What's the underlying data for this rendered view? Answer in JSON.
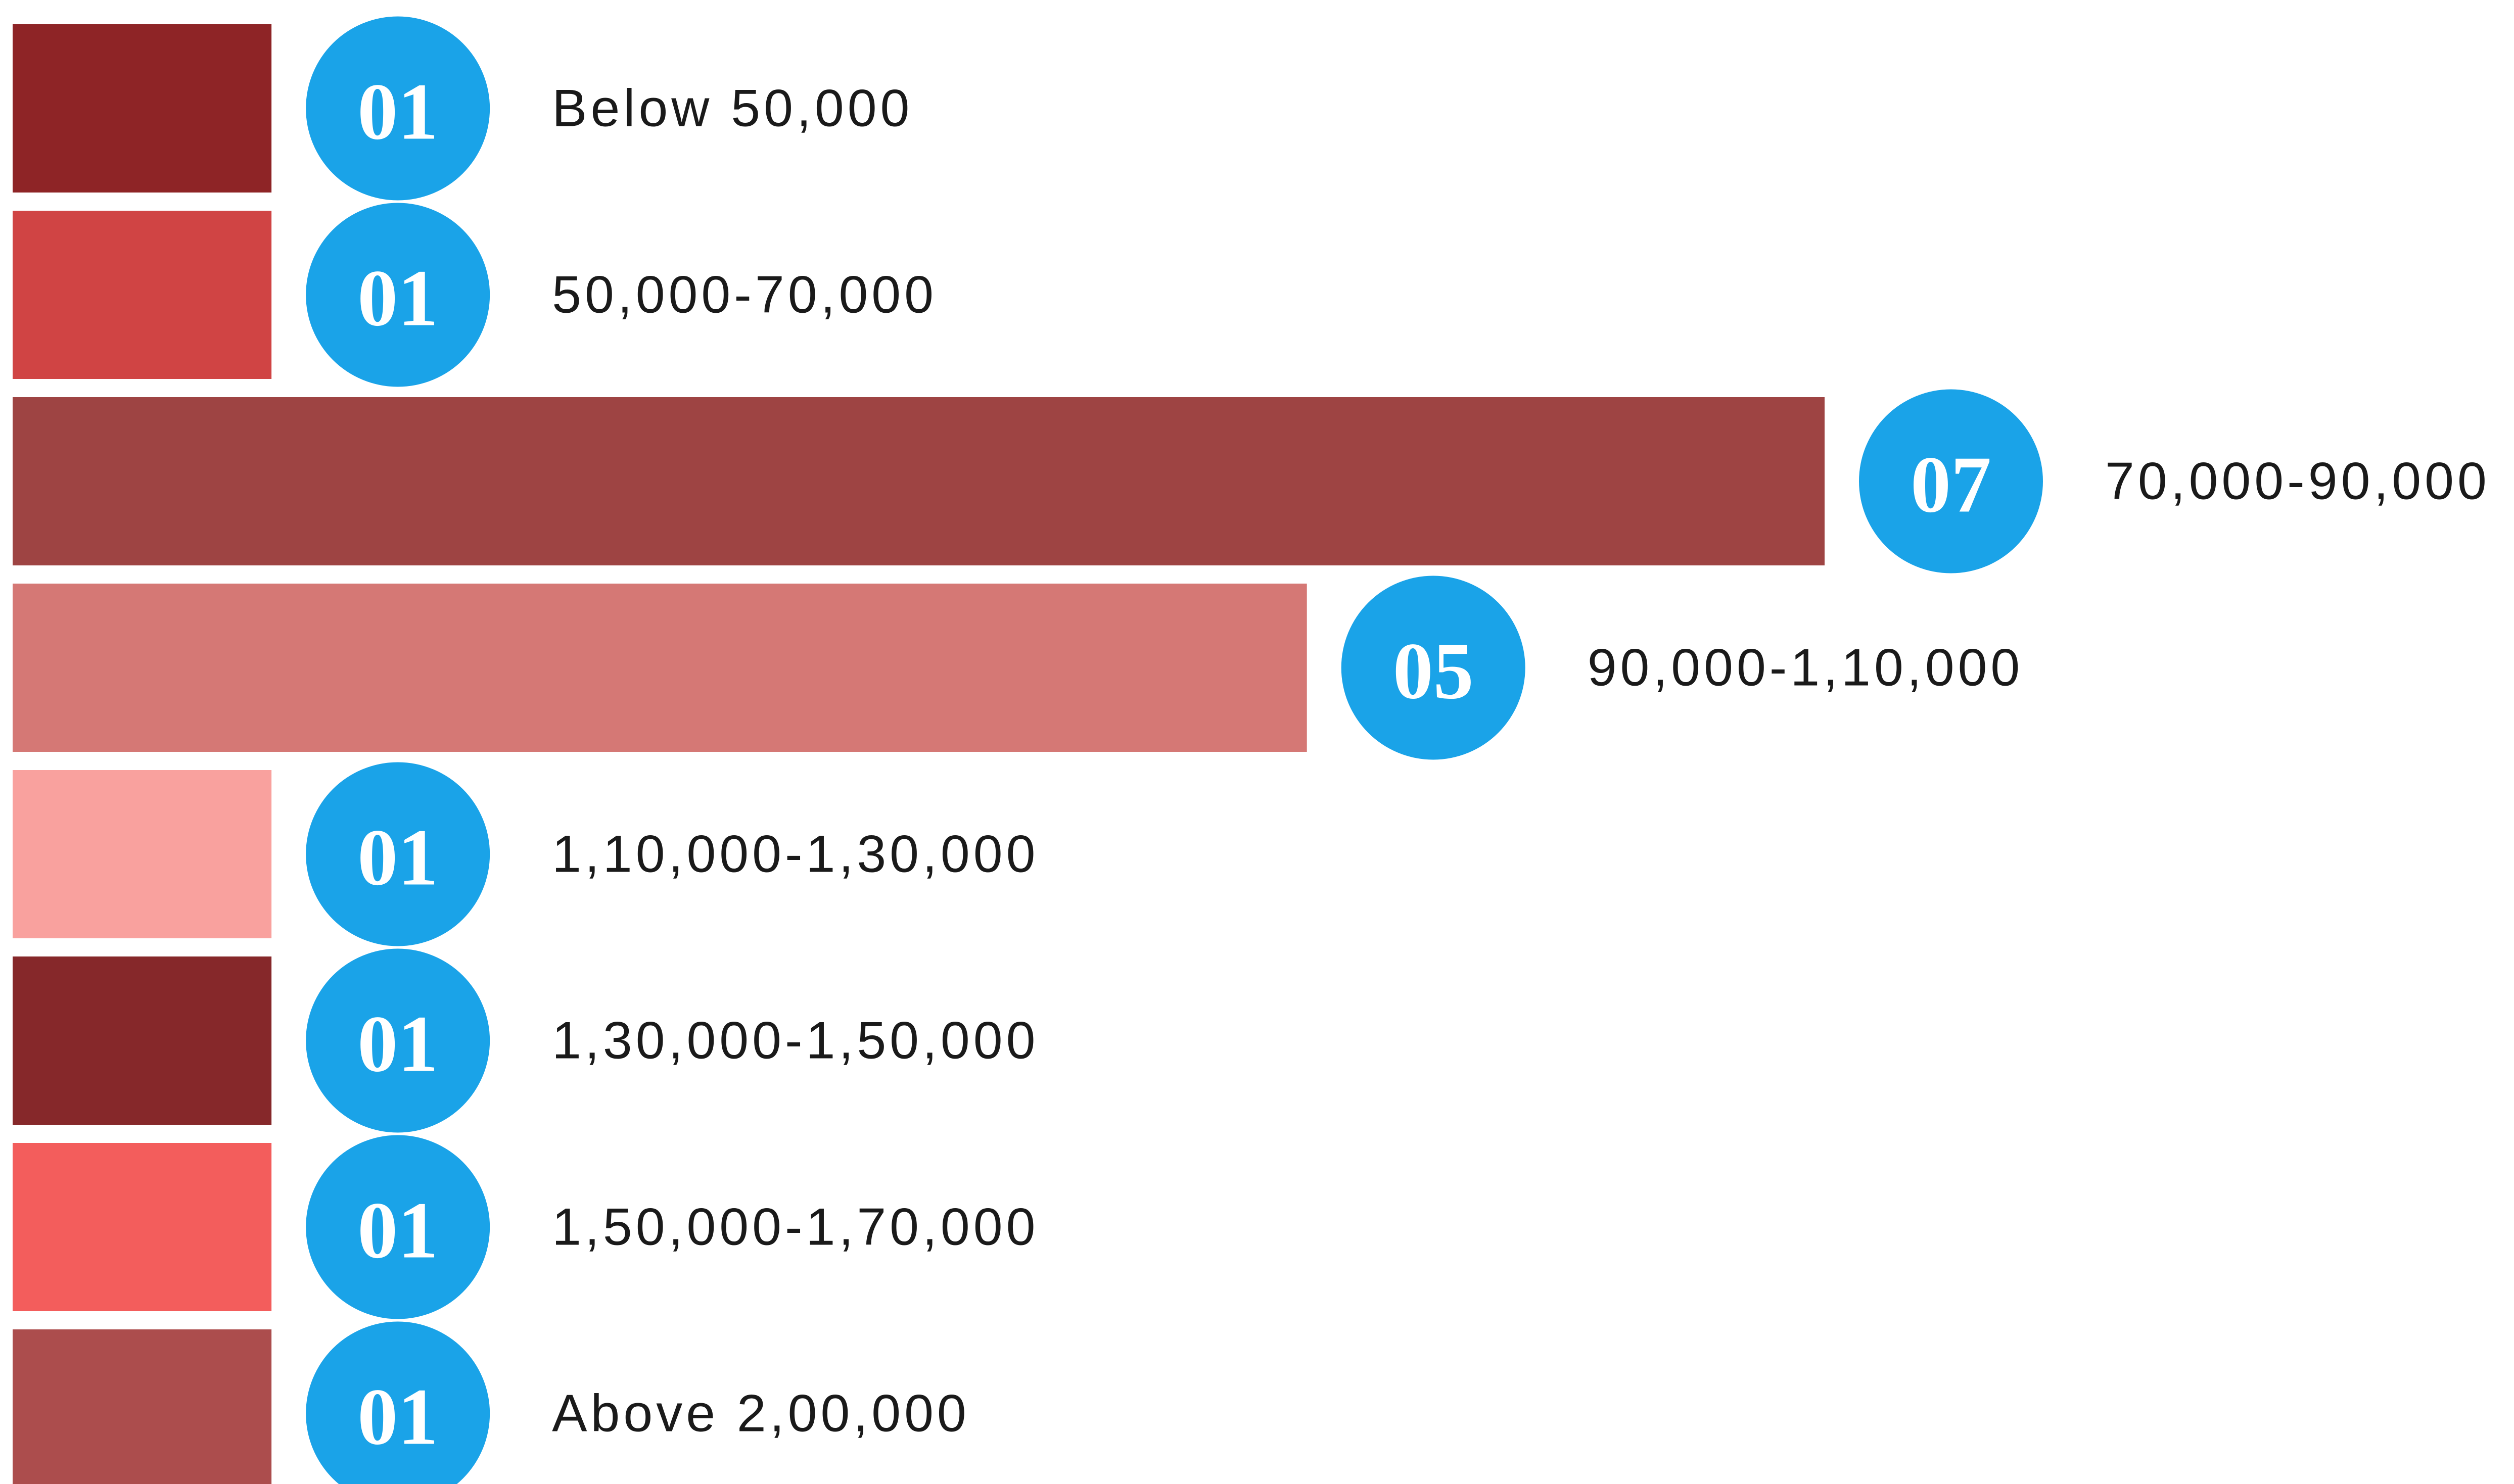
{
  "chart_data": {
    "type": "bar",
    "orientation": "horizontal",
    "categories": [
      "Below 50,000",
      "50,000-70,000",
      "70,000-90,000",
      "90,000-1,10,000",
      "1,10,000-1,30,000",
      "1,30,000-1,50,000",
      "1,50,000-1,70,000",
      "Above 2,00,000"
    ],
    "values": [
      1,
      1,
      7,
      5,
      1,
      1,
      1,
      1
    ],
    "value_labels": [
      "01",
      "01",
      "07",
      "05",
      "01",
      "01",
      "01",
      "01"
    ],
    "colors": [
      "#8e2426",
      "#d04444",
      "#9e4443",
      "#d57875",
      "#f9a19e",
      "#86282a",
      "#f35d5c",
      "#ac4d4d"
    ],
    "label_badge_color": "#1aa3e8"
  }
}
